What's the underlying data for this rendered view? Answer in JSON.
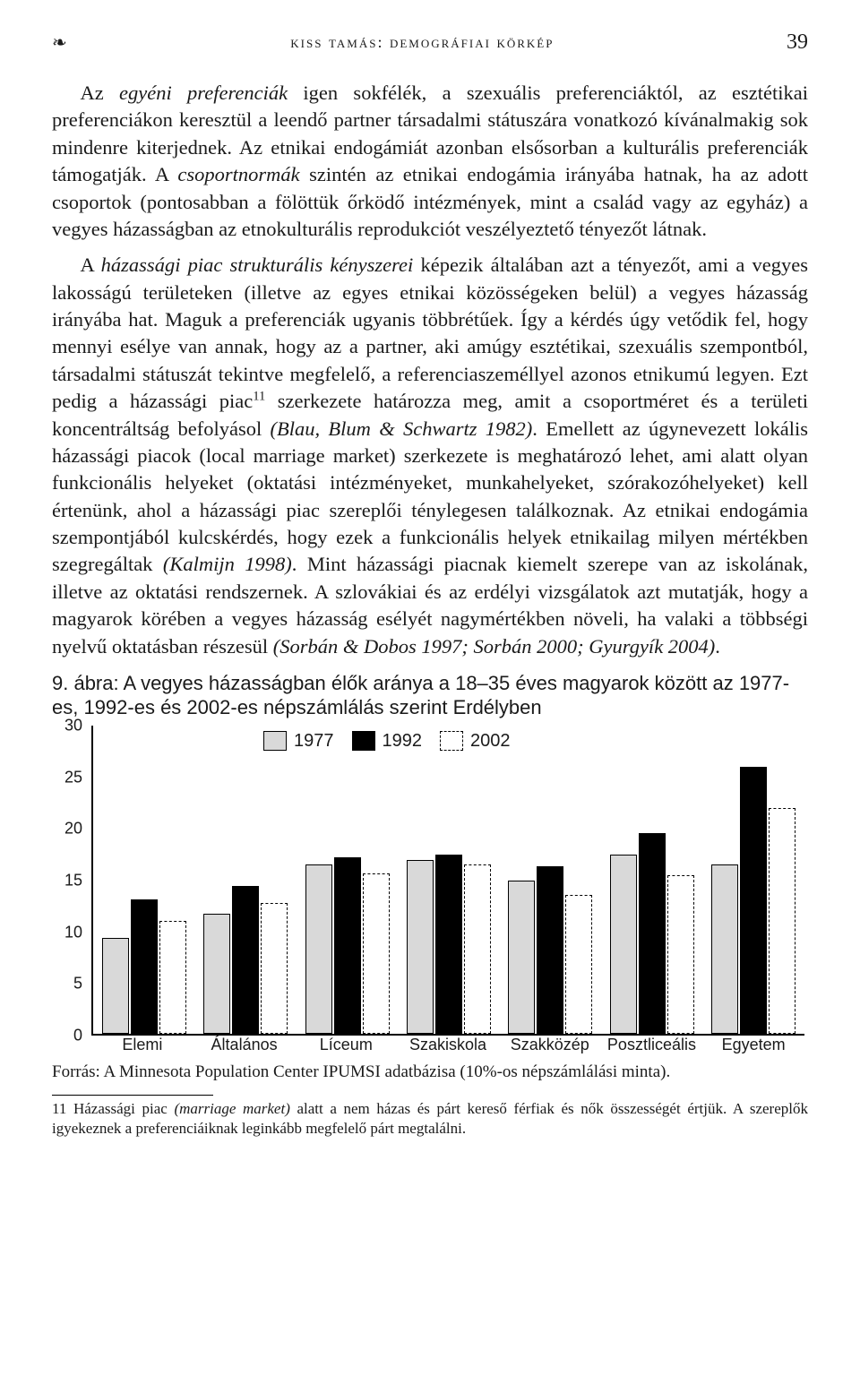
{
  "header": {
    "running_head": "kiss tamás: demográfiai körkép",
    "page_number": "39",
    "icon_left": "❧"
  },
  "paragraphs": {
    "p1a": "Az ",
    "p1b": "egyéni preferenciák",
    "p1c": " igen sokfélék, a szexuális preferenciáktól, az esztétikai preferenciákon keresztül a leendő partner társadalmi státuszára vonatkozó kívánalmakig sok mindenre kiterjednek. Az etnikai endogámiát azonban elsősorban a kulturális preferenciák támogatják. A ",
    "p1d": "csoportnormák",
    "p1e": " szintén az etnikai endogámia irányába hatnak, ha az adott csoportok (pontosabban a fölöttük őrködő intézmények, mint a család vagy az egyház) a vegyes házasságban az etnokulturális reprodukciót veszélyeztető tényezőt látnak.",
    "p2a": "A ",
    "p2b": "házassági piac strukturális kényszerei",
    "p2c": " képezik általában azt a tényezőt, ami a vegyes lakosságú területeken (illetve az egyes etnikai közösségeken belül) a vegyes házasság irányába hat. Maguk a preferenciák ugyanis többrétűek. Így a kérdés úgy vetődik fel, hogy mennyi esélye van annak, hogy az a partner, aki amúgy esztétikai, szexuális szempontból, társadalmi státuszát tekintve megfelelő, a referencia­személlyel azonos etnikumú legyen. Ezt pedig a házassági piac",
    "p2_sup": "11",
    "p2d": " szerkezete határozza meg, amit a csoportméret és a területi koncentráltság befolyásol ",
    "p2e": "(Blau, Blum & Schwartz 1982)",
    "p2f": ". Emellett az úgynevezett lokális házassági piacok (local marriage market) szerkezete is meghatározó lehet, ami alatt olyan funkcionális helyeket (oktatási intézményeket, munkahelyeket, szórakozóhelyeket) kell értenünk, ahol a házassági piac szereplői ténylegesen találkoznak. Az etnikai endogámia szempontjából kulcskérdés, hogy ezek a funkcionális helyek etnikailag milyen mértékben szegregáltak ",
    "p2g": "(Kalmijn 1998)",
    "p2h": ". Mint házassági piacnak kiemelt szerepe van az iskolának, illetve az oktatási rendszernek. A szlovákiai és az erdélyi vizsgálatok azt mutatják, hogy a magyarok körében a vegyes házasság esélyét nagymértékben növeli, ha valaki a többségi nyelvű oktatásban részesül ",
    "p2i": "(Sorbán & Dobos 1997; Sorbán 2000; Gyurgyík 2004)",
    "p2j": "."
  },
  "figure": {
    "caption": "9. ábra: A vegyes házasságban élők aránya a 18–35 éves magyarok között az 1977-es, 1992-es és 2002-es népszámlálás szerint Erdélyben",
    "legend": [
      "1977",
      "1992",
      "2002"
    ],
    "categories": [
      "Elemi",
      "Általános",
      "Líceum",
      "Szakiskola",
      "Szakközép",
      "Posztliceális",
      "Egyetem"
    ],
    "series": {
      "1977": [
        9.3,
        11.7,
        16.5,
        16.9,
        14.9,
        17.4,
        16.5
      ],
      "1992": [
        13.1,
        14.4,
        17.2,
        17.4,
        16.3,
        19.5,
        26.0
      ],
      "2002": [
        11.0,
        12.7,
        15.6,
        16.5,
        13.5,
        15.4,
        22.0
      ]
    },
    "ylim": [
      0,
      30
    ],
    "ytick_step": 5,
    "colors": {
      "1977_fill": "#d9d9d9",
      "1977_border": "#000000",
      "1992_fill": "#000000",
      "1992_border": "#000000",
      "2002_fill": "#ffffff",
      "2002_border": "#000000"
    },
    "source": "Forrás: A Minnesota Population Center IPUMSI adatbázisa (10%-os népszámlálási minta)."
  },
  "footnote": {
    "num": "11 ",
    "a": "Házassági piac ",
    "b": "(marriage market)",
    "c": " alatt a nem házas és párt kereső férfiak és nők összességét értjük. A szereplők igyekeznek a preferenciáiknak leginkább megfelelő párt megtalálni."
  }
}
